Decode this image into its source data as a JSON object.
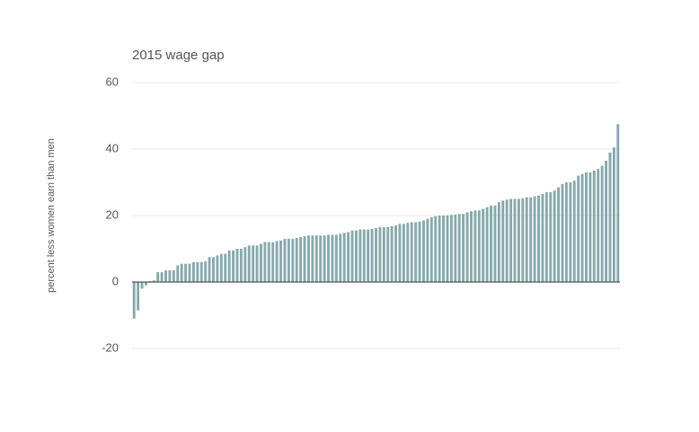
{
  "chart_data": {
    "type": "bar",
    "title": "2015 wage gap",
    "y_label": "percent less women earn than men",
    "categories": [
      null,
      null,
      null,
      null,
      null,
      null,
      null,
      null,
      null,
      null,
      null,
      null,
      null,
      null,
      null,
      null,
      null,
      null,
      null,
      null,
      null,
      null,
      null,
      null,
      null,
      null,
      null,
      null,
      null,
      null,
      null,
      null,
      null,
      null,
      null,
      null,
      null,
      null,
      null,
      null,
      null,
      null,
      null,
      null,
      null,
      null,
      null,
      null,
      null,
      null,
      null,
      null,
      null,
      null,
      null,
      null,
      null,
      null,
      null,
      null,
      null,
      null,
      null,
      null,
      null,
      null,
      null,
      null,
      null,
      null,
      null,
      null,
      null,
      null,
      null,
      null,
      null,
      null,
      null,
      null,
      null,
      null,
      null,
      null,
      null,
      null,
      null,
      null,
      null,
      null,
      null,
      null,
      null,
      null,
      null,
      null,
      null,
      null,
      null,
      null,
      null,
      null,
      null,
      null,
      null,
      null,
      null,
      null,
      null,
      null,
      null,
      null,
      null,
      null,
      null,
      null,
      null,
      null,
      null,
      null,
      null,
      null,
      null
    ],
    "values": [
      -11,
      -8.5,
      -2,
      -1,
      0.3,
      0.5,
      3,
      3,
      3.5,
      3.5,
      3.5,
      5,
      5.5,
      5.5,
      5.5,
      6,
      6,
      6,
      6.2,
      7.5,
      7.5,
      8,
      8.5,
      8.5,
      9.5,
      9.5,
      10,
      10,
      10.5,
      11,
      11,
      11,
      11.5,
      12,
      12,
      12,
      12.3,
      12.5,
      13,
      13,
      13,
      13.2,
      13.5,
      13.8,
      14,
      14,
      14,
      14,
      14,
      14.2,
      14.2,
      14.2,
      14.5,
      14.8,
      15,
      15.5,
      15.5,
      15.8,
      15.8,
      15.8,
      16,
      16.2,
      16.5,
      16.5,
      16.5,
      16.8,
      17,
      17.5,
      17.5,
      17.8,
      18,
      18,
      18.2,
      18.5,
      19,
      19.5,
      19.8,
      20,
      20,
      20,
      20.2,
      20.3,
      20.5,
      20.5,
      21,
      21.3,
      21.5,
      21.5,
      22,
      22.5,
      23,
      23,
      24,
      24.5,
      24.8,
      25,
      25,
      25,
      25.2,
      25.5,
      25.5,
      25.8,
      26,
      26.5,
      27,
      27,
      27.5,
      28.5,
      29.5,
      30,
      30,
      30.5,
      32,
      32.5,
      33,
      33,
      33.5,
      34,
      35,
      36.5,
      39,
      40.5,
      47.5
    ],
    "color": "#86a9ac",
    "ylim": [
      -20,
      60
    ],
    "yticks": [
      -20,
      0,
      20,
      40,
      60
    ],
    "grid": true
  }
}
